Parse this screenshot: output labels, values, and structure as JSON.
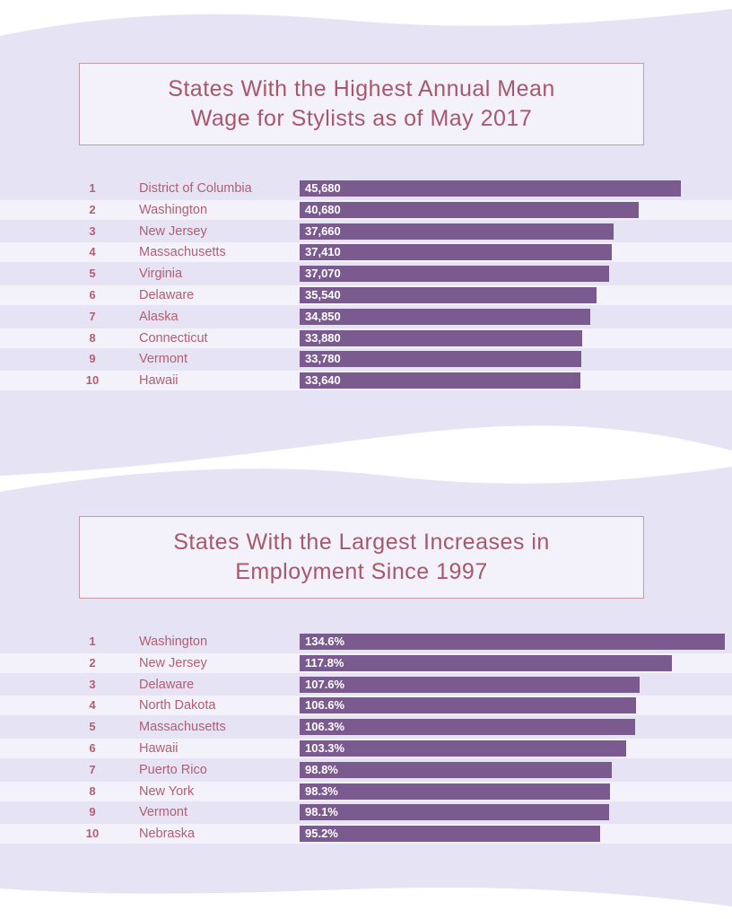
{
  "colors": {
    "background_band": "#e6e3f5",
    "title_text": "#a8586b",
    "title_border": "#c79aa3",
    "bar": "#7b5a90",
    "label_text": "#b15f71",
    "row_alt": "#f3f1fa"
  },
  "chart_data": [
    {
      "type": "bar",
      "orientation": "horizontal",
      "title": "States With the Highest Annual Mean\nWage for Stylists as of May 2017",
      "ranks": [
        "1",
        "2",
        "3",
        "4",
        "5",
        "6",
        "7",
        "8",
        "9",
        "10"
      ],
      "categories": [
        "District of Columbia",
        "Washington",
        "New Jersey",
        "Massachusetts",
        "Virginia",
        "Delaware",
        "Alaska",
        "Connecticut",
        "Vermont",
        "Hawaii"
      ],
      "values": [
        45680,
        40680,
        37660,
        37410,
        37070,
        35540,
        34850,
        33880,
        33780,
        33640
      ],
      "value_labels": [
        "45,680",
        "40,680",
        "37,660",
        "37,410",
        "37,070",
        "35,540",
        "34,850",
        "33,880",
        "33,780",
        "33,640"
      ],
      "xlim": [
        0,
        45680
      ]
    },
    {
      "type": "bar",
      "orientation": "horizontal",
      "title": "States With the Largest Increases in\nEmployment Since 1997",
      "ranks": [
        "1",
        "2",
        "3",
        "4",
        "5",
        "6",
        "7",
        "8",
        "9",
        "10"
      ],
      "categories": [
        "Washington",
        "New Jersey",
        "Delaware",
        "North Dakota",
        "Massachusetts",
        "Hawaii",
        "Puerto Rico",
        "New York",
        "Vermont",
        "Nebraska"
      ],
      "values": [
        134.6,
        117.8,
        107.6,
        106.6,
        106.3,
        103.3,
        98.8,
        98.3,
        98.1,
        95.2
      ],
      "value_labels": [
        "134.6%",
        "117.8%",
        "107.6%",
        "106.6%",
        "106.3%",
        "103.3%",
        "98.8%",
        "98.3%",
        "98.1%",
        "95.2%"
      ],
      "xlim": [
        0,
        134.6
      ]
    }
  ]
}
